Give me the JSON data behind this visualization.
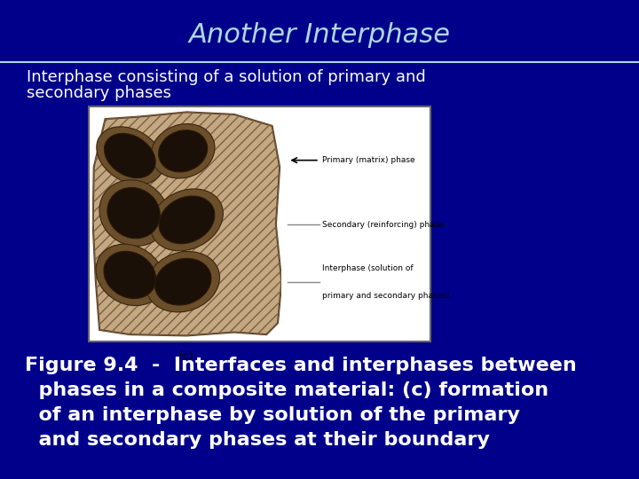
{
  "background_color": "#00008B",
  "title": "Another Interphase",
  "title_color": "#ADD8E6",
  "title_fontsize": 22,
  "subtitle_line1": "Interphase consisting of a solution of primary and",
  "subtitle_line2": "secondary phases",
  "subtitle_color": "#FFFFFF",
  "subtitle_fontsize": 13,
  "caption_line1": "Figure 9.4  -  Interfaces and interphases between",
  "caption_line2": "  phases in a composite material: (c) formation",
  "caption_line3": "  of an interphase by solution of the primary",
  "caption_line4": "  and secondary phases at their boundary",
  "caption_color": "#FFFFFF",
  "caption_fontsize": 16,
  "divider_color": "#ADD8E6",
  "matrix_color": "#C4A882",
  "interphase_color": "#6B4F2A",
  "secondary_color": "#1a1008",
  "blobs": [
    [
      2.0,
      8.0,
      1.4,
      0.9,
      -20
    ],
    [
      4.8,
      8.2,
      1.3,
      0.9,
      10
    ],
    [
      2.2,
      5.5,
      1.4,
      1.1,
      -10
    ],
    [
      5.0,
      5.2,
      1.5,
      1.0,
      15
    ],
    [
      2.0,
      2.8,
      1.4,
      1.0,
      -15
    ],
    [
      4.8,
      2.5,
      1.5,
      1.0,
      10
    ]
  ]
}
